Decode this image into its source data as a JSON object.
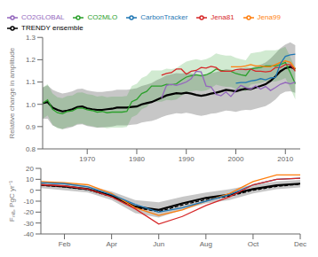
{
  "chart_data": [
    {
      "type": "line",
      "ylabel": "Relative change in amplitude",
      "x": [
        1961,
        1962,
        1963,
        1964,
        1965,
        1966,
        1967,
        1968,
        1969,
        1970,
        1971,
        1972,
        1973,
        1974,
        1975,
        1976,
        1977,
        1978,
        1979,
        1980,
        1981,
        1982,
        1983,
        1984,
        1985,
        1986,
        1987,
        1988,
        1989,
        1990,
        1991,
        1992,
        1993,
        1994,
        1995,
        1996,
        1997,
        1998,
        1999,
        2000,
        2001,
        2002,
        2003,
        2004,
        2005,
        2006,
        2007,
        2008,
        2009,
        2010,
        2011,
        2012
      ],
      "xlim": [
        1961,
        2013
      ],
      "xticks": [
        1970,
        1980,
        1990,
        2000,
        2010
      ],
      "ylim": [
        0.8,
        1.3
      ],
      "yticks": [
        0.8,
        0.9,
        {
          "value": 1.0,
          "label": "1.0"
        },
        1.1,
        1.2,
        1.3
      ],
      "legend": "top",
      "series": [
        {
          "name": "TRENDY ensemble",
          "color": "#000000",
          "values": [
            1.005,
            1.01,
            0.985,
            0.975,
            0.968,
            0.972,
            0.978,
            0.988,
            0.99,
            0.982,
            0.978,
            0.975,
            0.975,
            0.978,
            0.98,
            0.985,
            0.985,
            0.985,
            0.988,
            0.99,
            1.0,
            1.005,
            1.01,
            1.02,
            1.03,
            1.04,
            1.045,
            1.05,
            1.048,
            1.052,
            1.048,
            1.042,
            1.038,
            1.042,
            1.048,
            1.052,
            1.058,
            1.065,
            1.062,
            1.058,
            1.065,
            1.07,
            1.068,
            1.075,
            1.082,
            1.09,
            1.105,
            1.125,
            1.148,
            1.162,
            1.168,
            1.158
          ],
          "lower": [
            0.935,
            0.935,
            0.905,
            0.895,
            0.888,
            0.892,
            0.898,
            0.908,
            0.91,
            0.902,
            0.898,
            0.895,
            0.895,
            0.898,
            0.9,
            0.905,
            0.905,
            0.905,
            0.908,
            0.91,
            0.918,
            0.922,
            0.925,
            0.932,
            0.942,
            0.95,
            0.955,
            0.96,
            0.958,
            0.962,
            0.958,
            0.952,
            0.948,
            0.952,
            0.958,
            0.96,
            0.966,
            0.972,
            0.97,
            0.966,
            0.972,
            0.975,
            0.974,
            0.98,
            0.986,
            0.992,
            1.005,
            1.022,
            1.045,
            1.056,
            1.058,
            1.051
          ],
          "upper": [
            1.075,
            1.085,
            1.065,
            1.055,
            1.048,
            1.052,
            1.058,
            1.068,
            1.07,
            1.062,
            1.058,
            1.055,
            1.055,
            1.058,
            1.06,
            1.065,
            1.065,
            1.065,
            1.068,
            1.072,
            1.082,
            1.088,
            1.095,
            1.108,
            1.118,
            1.13,
            1.135,
            1.14,
            1.138,
            1.142,
            1.138,
            1.132,
            1.128,
            1.132,
            1.14,
            1.145,
            1.15,
            1.158,
            1.155,
            1.15,
            1.158,
            1.165,
            1.162,
            1.17,
            1.178,
            1.188,
            1.205,
            1.228,
            1.252,
            1.268,
            1.278,
            1.265
          ]
        },
        {
          "name": "CO2MLO",
          "color": "#2ca02c",
          "values": [
            1.005,
            1.02,
            0.978,
            0.962,
            0.958,
            0.968,
            0.97,
            0.982,
            0.983,
            0.975,
            0.972,
            0.965,
            0.968,
            0.962,
            0.965,
            0.965,
            0.965,
            0.968,
            1.012,
            1.022,
            1.048,
            1.058,
            1.082,
            1.082,
            1.082,
            1.09,
            1.088,
            1.092,
            1.108,
            1.122,
            1.128,
            1.132,
            1.128,
            1.132,
            1.142,
            1.158,
            1.152,
            1.148,
            1.148,
            1.138,
            1.132,
            1.128,
            1.158,
            1.162,
            1.165,
            1.172,
            1.172,
            1.172,
            1.178,
            1.188,
            1.142,
            1.092
          ],
          "lower": [
            0.935,
            0.95,
            0.908,
            0.892,
            0.888,
            0.898,
            0.9,
            0.912,
            0.913,
            0.905,
            0.902,
            0.895,
            0.898,
            0.892,
            0.895,
            0.895,
            0.895,
            0.898,
            0.942,
            0.952,
            0.978,
            0.988,
            1.012,
            1.012,
            1.012,
            1.02,
            1.018,
            1.022,
            1.038,
            1.052,
            1.058,
            1.062,
            1.058,
            1.062,
            1.072,
            1.088,
            1.082,
            1.078,
            1.078,
            1.068,
            1.062,
            1.058,
            1.088,
            1.092,
            1.095,
            1.102,
            1.102,
            1.102,
            1.108,
            1.118,
            1.072,
            1.022
          ],
          "upper": [
            1.075,
            1.09,
            1.048,
            1.032,
            1.028,
            1.038,
            1.04,
            1.052,
            1.053,
            1.045,
            1.042,
            1.035,
            1.038,
            1.032,
            1.035,
            1.035,
            1.035,
            1.038,
            1.082,
            1.092,
            1.118,
            1.128,
            1.152,
            1.152,
            1.152,
            1.16,
            1.158,
            1.162,
            1.178,
            1.192,
            1.198,
            1.202,
            1.198,
            1.202,
            1.212,
            1.228,
            1.222,
            1.218,
            1.218,
            1.208,
            1.202,
            1.198,
            1.228,
            1.232,
            1.235,
            1.242,
            1.242,
            1.242,
            1.248,
            1.258,
            1.212,
            1.162
          ]
        },
        {
          "name": "CO2GLOBAL",
          "color": "#9467bd",
          "values": [
            null,
            null,
            null,
            null,
            null,
            null,
            null,
            null,
            null,
            null,
            null,
            null,
            null,
            null,
            null,
            null,
            null,
            null,
            null,
            null,
            null,
            null,
            null,
            null,
            1.028,
            1.085,
            1.09,
            1.085,
            1.092,
            1.1,
            1.115,
            1.148,
            1.145,
            1.082,
            1.078,
            1.045,
            1.038,
            1.055,
            1.035,
            1.062,
            1.085,
            1.075,
            1.068,
            1.082,
            1.068,
            1.08,
            1.062,
            1.075,
            1.09,
            1.098,
            1.092,
            1.1
          ]
        },
        {
          "name": "Jena81",
          "color": "#d62728",
          "values": [
            null,
            null,
            null,
            null,
            null,
            null,
            null,
            null,
            null,
            null,
            null,
            null,
            null,
            null,
            null,
            null,
            null,
            null,
            null,
            null,
            null,
            null,
            null,
            null,
            1.13,
            1.138,
            1.142,
            1.158,
            1.158,
            1.135,
            1.148,
            1.152,
            1.165,
            1.162,
            1.17,
            1.165,
            1.148,
            1.148,
            1.148,
            1.155,
            1.158,
            1.155,
            1.158,
            1.148,
            1.148,
            1.145,
            1.148,
            1.165,
            1.165,
            1.178,
            1.178,
            1.148
          ]
        },
        {
          "name": "Jena99",
          "color": "#ff7f0e",
          "values": [
            null,
            null,
            null,
            null,
            null,
            null,
            null,
            null,
            null,
            null,
            null,
            null,
            null,
            null,
            null,
            null,
            null,
            null,
            null,
            null,
            null,
            null,
            null,
            null,
            null,
            null,
            null,
            null,
            null,
            null,
            null,
            null,
            null,
            null,
            null,
            null,
            null,
            null,
            1.168,
            1.168,
            1.168,
            1.172,
            1.178,
            1.172,
            1.172,
            1.168,
            1.168,
            1.178,
            1.188,
            1.195,
            1.188,
            1.158
          ]
        },
        {
          "name": "CarbonTracker",
          "color": "#1f77b4",
          "values": [
            null,
            null,
            null,
            null,
            null,
            null,
            null,
            null,
            null,
            null,
            null,
            null,
            null,
            null,
            null,
            null,
            null,
            null,
            null,
            null,
            null,
            null,
            null,
            null,
            null,
            null,
            null,
            null,
            null,
            null,
            null,
            null,
            null,
            null,
            null,
            null,
            null,
            null,
            null,
            1.095,
            1.098,
            1.098,
            1.105,
            1.108,
            1.115,
            1.11,
            1.118,
            1.12,
            1.182,
            1.215,
            1.222,
            1.225
          ]
        }
      ]
    },
    {
      "type": "line",
      "ylabel": "Fₙₗₐ, PgC yr⁻¹",
      "x": [
        1,
        2,
        3,
        4,
        5,
        6,
        7,
        8,
        9,
        10,
        11,
        12
      ],
      "xlim": [
        1,
        12
      ],
      "xticks": [
        {
          "value": 2,
          "label": "Feb"
        },
        {
          "value": 4,
          "label": "Apr"
        },
        {
          "value": 6,
          "label": "Jun"
        },
        {
          "value": 8,
          "label": "Aug"
        },
        {
          "value": 10,
          "label": "Oct"
        },
        {
          "value": 12,
          "label": "Dec"
        }
      ],
      "ylim": [
        -40,
        20
      ],
      "yticks": [
        -40,
        -30,
        -20,
        -10,
        0,
        10,
        20
      ],
      "series": [
        {
          "color": "#000000",
          "values": [
            5.0,
            3.5,
            1.0,
            -5.0,
            -15.0,
            -18.0,
            -12.0,
            -7.0,
            -4.0,
            1.0,
            4.5,
            6.0
          ],
          "lower": [
            2.0,
            0.0,
            -2.0,
            -9.0,
            -21.0,
            -25.0,
            -18.0,
            -12.0,
            -9.0,
            -3.0,
            1.0,
            2.5
          ],
          "upper": [
            8.0,
            7.0,
            4.0,
            -1.0,
            -9.0,
            -11.0,
            -6.0,
            -2.0,
            1.0,
            5.0,
            8.0,
            9.5
          ]
        },
        {
          "color": "#000000",
          "line_style": "dashed",
          "values": [
            4.5,
            3.0,
            0.5,
            -6.0,
            -16.0,
            -19.5,
            -13.5,
            -8.5,
            -5.5,
            0.0,
            3.5,
            5.5
          ]
        },
        {
          "color": "#ff7f0e",
          "values": [
            8.0,
            7.0,
            5.0,
            -3.0,
            -16.0,
            -23.0,
            -18.0,
            -10.0,
            -3.0,
            8.0,
            14.0,
            14.0
          ]
        },
        {
          "color": "#1f77b4",
          "values": [
            7.0,
            6.0,
            3.0,
            -4.0,
            -13.0,
            -20.0,
            -16.0,
            -10.0,
            -4.0,
            5.0,
            10.0,
            11.0
          ]
        },
        {
          "color": "#d62728",
          "values": [
            5.0,
            4.0,
            1.0,
            -6.0,
            -17.0,
            -31.0,
            -24.0,
            -14.0,
            -6.0,
            5.0,
            10.0,
            11.0
          ]
        }
      ]
    }
  ]
}
